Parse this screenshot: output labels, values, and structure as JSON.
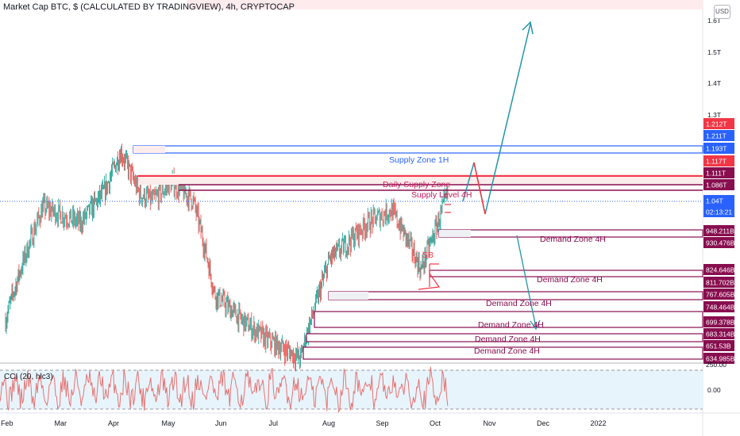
{
  "header": {
    "title": "Market Cap BTC, $ (CALCULATED BY TRADINGVIEW), 4h, CRYPTOCAP",
    "currency": "USD"
  },
  "colors": {
    "candle_up": "#26a69a",
    "candle_down": "#ef5350",
    "supply_blue": "#2962ff",
    "zone_maroon": "#880e4f",
    "arrow_teal": "#2196a6",
    "cci_line": "#e57373",
    "cci_band": "#e1f5fe"
  },
  "price_axis": {
    "ticks": [
      "1.6T",
      "1.5T",
      "1.4T",
      "1.3T"
    ],
    "labels": [
      {
        "text": "1.212T",
        "color": "#f23645"
      },
      {
        "text": "1.211T",
        "color": "#2962ff"
      },
      {
        "text": "1.193T",
        "color": "#2962ff"
      },
      {
        "text": "1.117T",
        "color": "#f23645"
      },
      {
        "text": "1.111T",
        "color": "#880e4f"
      },
      {
        "text": "1.086T",
        "color": "#880e4f"
      },
      {
        "text": "1.04T",
        "color": "#2962ff"
      },
      {
        "text": "02:13:21",
        "color": "#2962ff"
      },
      {
        "text": "948.211B",
        "color": "#880e4f"
      },
      {
        "text": "930.476B",
        "color": "#880e4f"
      },
      {
        "text": "824.646B",
        "color": "#880e4f"
      },
      {
        "text": "811.702B",
        "color": "#880e4f"
      },
      {
        "text": "767.605B",
        "color": "#880e4f"
      },
      {
        "text": "748.464B",
        "color": "#880e4f"
      },
      {
        "text": "699.378B",
        "color": "#880e4f"
      },
      {
        "text": "683.314B",
        "color": "#880e4f"
      },
      {
        "text": "651.53B",
        "color": "#880e4f"
      },
      {
        "text": "634.985B",
        "color": "#880e4f"
      }
    ],
    "osc_ticks": [
      "250.00",
      "0.00"
    ]
  },
  "time_axis": [
    "Feb",
    "Mar",
    "Apr",
    "May",
    "Jun",
    "Jul",
    "Aug",
    "Sep",
    "Oct",
    "Nov",
    "Dec",
    "2022"
  ],
  "annotations": {
    "supply_zone_1h": "Supply Zone 1H",
    "daily_supply_zone": "Daily Supply Zone",
    "supply_level_4h": "Supply Level 4H",
    "sb": "SB",
    "demand_zones": [
      "Demand Zone 4H",
      "Demand Zone 4H",
      "Demand Zone 4H",
      "Demand Zone 4H",
      "Demand Zone 4H",
      "Demand Zone 4H"
    ]
  },
  "oscillator": {
    "title": "CCI (20, hlc3)",
    "upper_band": 100,
    "lower_band": -100,
    "range": [
      -250,
      250
    ]
  },
  "chart_data": {
    "type": "candlestick",
    "title": "Market Cap BTC, $ (CALCULATED BY TRADINGVIEW), 4h, CRYPTOCAP",
    "x_axis": [
      "Feb",
      "Mar",
      "Apr",
      "May",
      "Jun",
      "Jul",
      "Aug",
      "Sep",
      "Oct",
      "Nov",
      "Dec",
      "2022"
    ],
    "y_unit": "USD",
    "y_scale": "log",
    "last_price": "1.04T",
    "countdown": "02:13:21",
    "path_t": [
      0,
      0.7,
      1.4,
      1.85,
      2.15,
      2.5,
      2.75,
      3.1,
      3.5,
      3.9,
      4.4,
      4.85,
      5.5,
      5.8,
      6.05,
      6.3,
      6.75,
      7.2,
      7.5,
      7.75,
      8.0,
      8.25
    ],
    "path_v": [
      0.7,
      1.0,
      0.95,
      1.05,
      1.19,
      1.04,
      1.02,
      1.08,
      1.02,
      0.76,
      0.7,
      0.66,
      0.62,
      0.74,
      0.85,
      0.88,
      0.95,
      0.99,
      0.9,
      0.82,
      0.92,
      1.04
    ],
    "horizontal_levels": [
      {
        "label": "Supply Zone 1H",
        "from": 1.193,
        "to": 1.211,
        "start_month_index": 2.4
      },
      {
        "label": "Daily Supply Zone",
        "from": 1.086,
        "to": 1.111,
        "start_month_index": 2.5
      },
      {
        "label": "Demand Zone 4H",
        "from": 0.930476,
        "to": 0.948211,
        "start_month_index": 7.8
      },
      {
        "label": "Demand Zone 4H",
        "from": 0.811702,
        "to": 0.824646,
        "start_month_index": 7.3
      },
      {
        "label": "Demand Zone 4H",
        "from": 0.748464,
        "to": 0.767605,
        "start_month_index": 6.4
      },
      {
        "label": "Demand Zone 4H",
        "from": 0.683314,
        "to": 0.699378,
        "start_month_index": 6.0
      },
      {
        "label": "Demand Zone 4H",
        "from": 0.634985,
        "to": 0.65153,
        "start_month_index": 5.5
      }
    ],
    "projections": [
      "up to above 1.6T",
      "down to ~0.69T"
    ],
    "oscillator": "CCI (20, hlc3)"
  }
}
